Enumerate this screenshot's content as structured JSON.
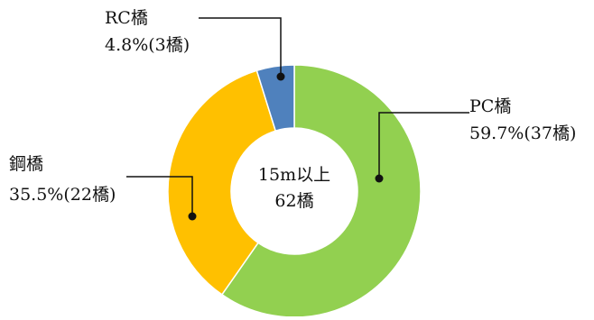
{
  "chart_data": {
    "type": "pie",
    "variant": "donut",
    "center_label": [
      "15m以上",
      "62橋"
    ],
    "slices": [
      {
        "name": "PC橋",
        "percent": 59.7,
        "count": 37,
        "value_label": "59.7%(37橋)",
        "color": "#92d050"
      },
      {
        "name": "鋼橋",
        "percent": 35.5,
        "count": 22,
        "value_label": "35.5%(22橋)",
        "color": "#ffc000"
      },
      {
        "name": "RC橋",
        "percent": 4.8,
        "count": 3,
        "value_label": "4.8%(3橋)",
        "color": "#4f81bd"
      }
    ],
    "start_angle_deg": 0,
    "direction": "clockwise",
    "legend": "none"
  }
}
